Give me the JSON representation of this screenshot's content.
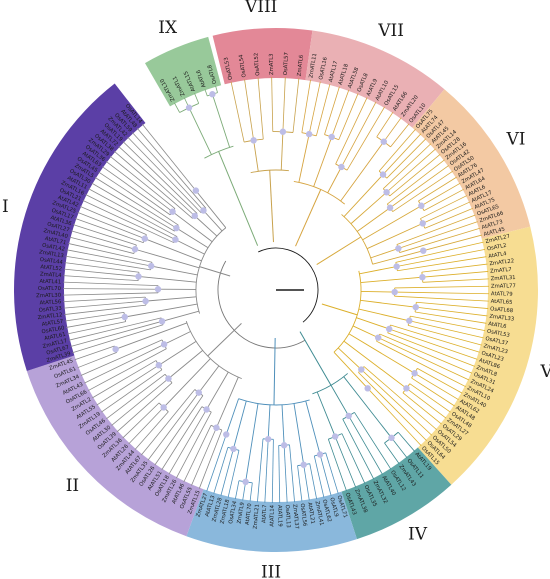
{
  "figure": {
    "type": "circular-phylogenetic-tree",
    "clades": [
      {
        "id": "IX",
        "numeral": "IX",
        "band_color": "#98c99a",
        "line_color": "#7cab78",
        "leaves": [
          "ZmATL10",
          "ZmATL1",
          "AtATL15",
          "AtATL6",
          "OsATL8"
        ]
      },
      {
        "id": "VIII",
        "numeral": "VIII",
        "band_color": "#e38897",
        "line_color": "#c8a24d",
        "leaves": [
          "OsATL53",
          "OsATL54",
          "OsATL52",
          "ZmATL3",
          "OsATL57",
          "ZmATL6"
        ]
      },
      {
        "id": "VII",
        "numeral": "VII",
        "band_color": "#eab0b4",
        "line_color": "#d6a440",
        "leaves": [
          "ZmATL11",
          "OsATL16",
          "AtATL17",
          "AtATL18",
          "AtATL58",
          "OsATL8",
          "AtATL9",
          "AtATL10",
          "OsATL15",
          "AtATL66",
          "ZmATL20",
          "OsATL10"
        ]
      },
      {
        "id": "VI",
        "numeral": "VI",
        "band_color": "#f3c9a3",
        "line_color": "#d7a93b",
        "leaves": [
          "OsATL75",
          "AtATL74",
          "OsATL47",
          "AtATL45",
          "ZmATL14",
          "OsATL28",
          "ZmATL16",
          "OsATL42",
          "OsATL50",
          "AtATL76",
          "ZmATL47",
          "AtATL64",
          "AtATL6",
          "AtATL17",
          "AtATL75",
          "OsATL65",
          "ZmATL66",
          "AtATL73",
          "AtATL45"
        ]
      },
      {
        "id": "V",
        "numeral": "V",
        "band_color": "#f7dd92",
        "line_color": "#dcaf2a",
        "leaves": [
          "ZmATL27",
          "OsATL2",
          "AtATL4",
          "ZmATL22",
          "ZmATL7",
          "ZmATL31",
          "ZmATL77",
          "AtATL79",
          "AtATL65",
          "OsATL68",
          "ZmATL33",
          "AtATL6",
          "OsATL53",
          "OsATL37",
          "ZmATL23",
          "OsATL23",
          "AtATL86",
          "ZmATL8",
          "OsATL31",
          "ZmATL24",
          "ZmATL10",
          "ZmATL40",
          "AtATL62",
          "AtATL48",
          "OsATL48",
          "ZmATL27",
          "OsATL29",
          "OsATL54",
          "OsATL50",
          "OsATL64",
          "OsATL15"
        ]
      },
      {
        "id": "IV",
        "numeral": "IV",
        "band_color": "#5fa6a6",
        "line_color": "#3f8b92",
        "leaves": [
          "AtATL19",
          "OsATL11",
          "ZmATL43",
          "OsATL12",
          "AtATL40",
          "ZmATL32",
          "OsATL35",
          "ZmATL38",
          "OsATL43"
        ]
      },
      {
        "id": "III",
        "numeral": "III",
        "band_color": "#8ab8dc",
        "line_color": "#4e8fba",
        "leaves": [
          "OsATL71",
          "OsATL9",
          "OsATL62",
          "ZmATL41",
          "AtATL21",
          "OsATL56",
          "ZmATL37",
          "OsATL13",
          "AtATL19",
          "AtATL14",
          "AtATL7",
          "ZmATL21",
          "AtATL70",
          "ZmATL9",
          "OsATL34",
          "ZmATL18",
          "ZmATL28",
          "AtATL13",
          "ZmATL27"
        ]
      },
      {
        "id": "II",
        "numeral": "II",
        "band_color": "#b7a2d8",
        "line_color": "#8a8a8a",
        "leaves": [
          "ZmATL15",
          "OsATL55",
          "AtATL46",
          "ZmATL26",
          "OsATL18",
          "AtATL51",
          "OsATL26",
          "ZmATL35",
          "AtATL67",
          "ZmATL44",
          "AtATL26",
          "ZmATL36",
          "OsATL39",
          "AtATL30",
          "OsATL46",
          "ZmATL19",
          "AtATL55",
          "ZmATL2",
          "OsATL66",
          "AtATL43",
          "ZmATL34",
          "OsATL61",
          "ZmATL45"
        ]
      },
      {
        "id": "I",
        "numeral": "I",
        "band_color": "#5b3fa6",
        "line_color": "#8a8a8a",
        "leaves": [
          "ZmATL39",
          "OsATL67",
          "ZmATL17",
          "AtATL61",
          "OsATL60",
          "AtATL57",
          "ZmATL12",
          "OsATL33",
          "AtATL56",
          "ZmATL30",
          "OsATL70",
          "AtATL41",
          "ZmATL4",
          "AtATL52",
          "OsATL44",
          "ZmATL13",
          "OsATL42",
          "AtATL71",
          "ZmATL40",
          "OsATL27",
          "AtATL36",
          "OsATL17",
          "ZmATL25",
          "AtATL42",
          "OsATL21",
          "ZmATL16",
          "AtATL11",
          "OsATL30",
          "ZmATL5",
          "OsATL45",
          "AtATL63",
          "OsATL36",
          "ZmATL29",
          "OsATL38",
          "AtATL72",
          "OsATL19",
          "ZmATL42",
          "OsATL59",
          "AtATL48",
          "OsATL14"
        ]
      }
    ]
  }
}
